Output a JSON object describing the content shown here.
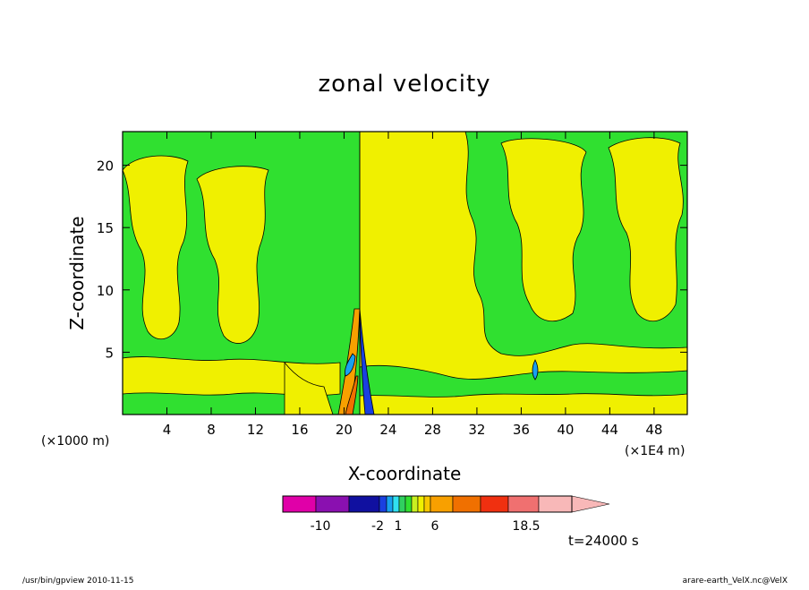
{
  "chart_data": {
    "type": "heatmap",
    "title": "zonal velocity",
    "xlabel": "X-coordinate",
    "ylabel": "Z-coordinate",
    "y_unit": "(×1000 m)",
    "x_unit": "(×1E4 m)",
    "xlim": [
      0,
      51
    ],
    "ylim": [
      0,
      22.7
    ],
    "x_ticks": [
      "4",
      "8",
      "12",
      "16",
      "20",
      "24",
      "28",
      "32",
      "36",
      "40",
      "44",
      "48"
    ],
    "x_tick_values": [
      4,
      8,
      12,
      16,
      20,
      24,
      28,
      32,
      36,
      40,
      44,
      48
    ],
    "y_ticks": [
      "5",
      "10",
      "15",
      "20"
    ],
    "y_tick_values": [
      5,
      10,
      15,
      20
    ],
    "field_note": "",
    "colorbar": {
      "colors": [
        "#e000a8",
        "#8a10b0",
        "#1010a0",
        "#1a40e0",
        "#18a0f0",
        "#30e0f0",
        "#30d060",
        "#30e030",
        "#c8f020",
        "#f0f000",
        "#f8c800",
        "#f8a000",
        "#f07000",
        "#f03010",
        "#f07070",
        "#f8b8b8"
      ],
      "tick_labels": [
        "-10",
        "-2",
        "1",
        "6",
        "18.5"
      ],
      "tick_values": [
        -10,
        -2,
        1,
        6,
        18.5
      ]
    },
    "time_label": "t=24000 s",
    "footer_left": "/usr/bin/gpview   2010-11-15",
    "footer_right": "arare-earth_VelX.nc@VelX"
  }
}
